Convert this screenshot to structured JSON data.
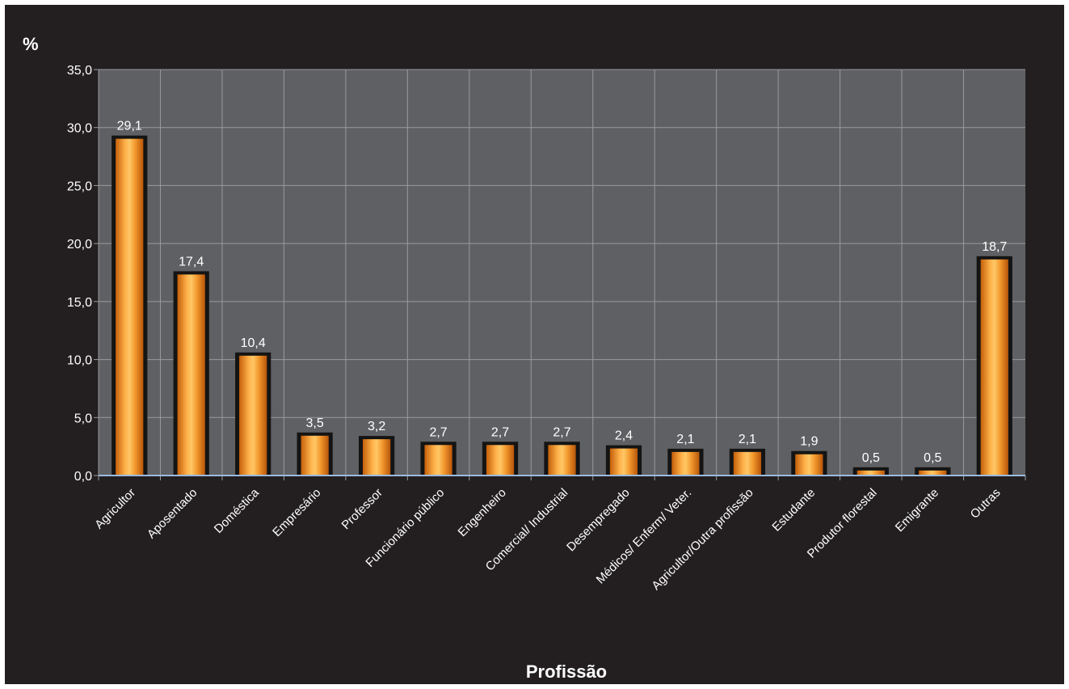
{
  "chart_data": {
    "type": "bar",
    "title": "",
    "ylabel": "%",
    "xlabel": "Profissão",
    "ylim": [
      0,
      35
    ],
    "yticks": [
      "0,0",
      "5,0",
      "10,0",
      "15,0",
      "20,0",
      "25,0",
      "30,0",
      "35,0"
    ],
    "grid": true,
    "legend": "none",
    "categories": [
      "Agricultor",
      "Aposentado",
      "Doméstica",
      "Empresário",
      "Professor",
      "Funcionário público",
      "Engenheiro",
      "Comercial/ Industrial",
      "Desempregado",
      "Médicos/ Enferm/ Veter.",
      "Agricultor/Outra profissão",
      "Estudante",
      "Produtor florestal",
      "Emigrante",
      "Outras"
    ],
    "values": [
      29.1,
      17.4,
      10.4,
      3.5,
      3.2,
      2.7,
      2.7,
      2.7,
      2.4,
      2.1,
      2.1,
      1.9,
      0.5,
      0.5,
      18.7
    ],
    "value_labels": [
      "29,1",
      "17,4",
      "10,4",
      "3,5",
      "3,2",
      "2,7",
      "2,7",
      "2,7",
      "2,4",
      "2,1",
      "2,1",
      "1,9",
      "0,5",
      "0,5",
      "18,7"
    ],
    "colors": {
      "background": "#231f20",
      "plot_area": "#5f6063",
      "gridline": "#9a9a9d",
      "bar": "#f08a24",
      "bar_shadow": "#141414",
      "axis": "#9bbbe0"
    }
  }
}
